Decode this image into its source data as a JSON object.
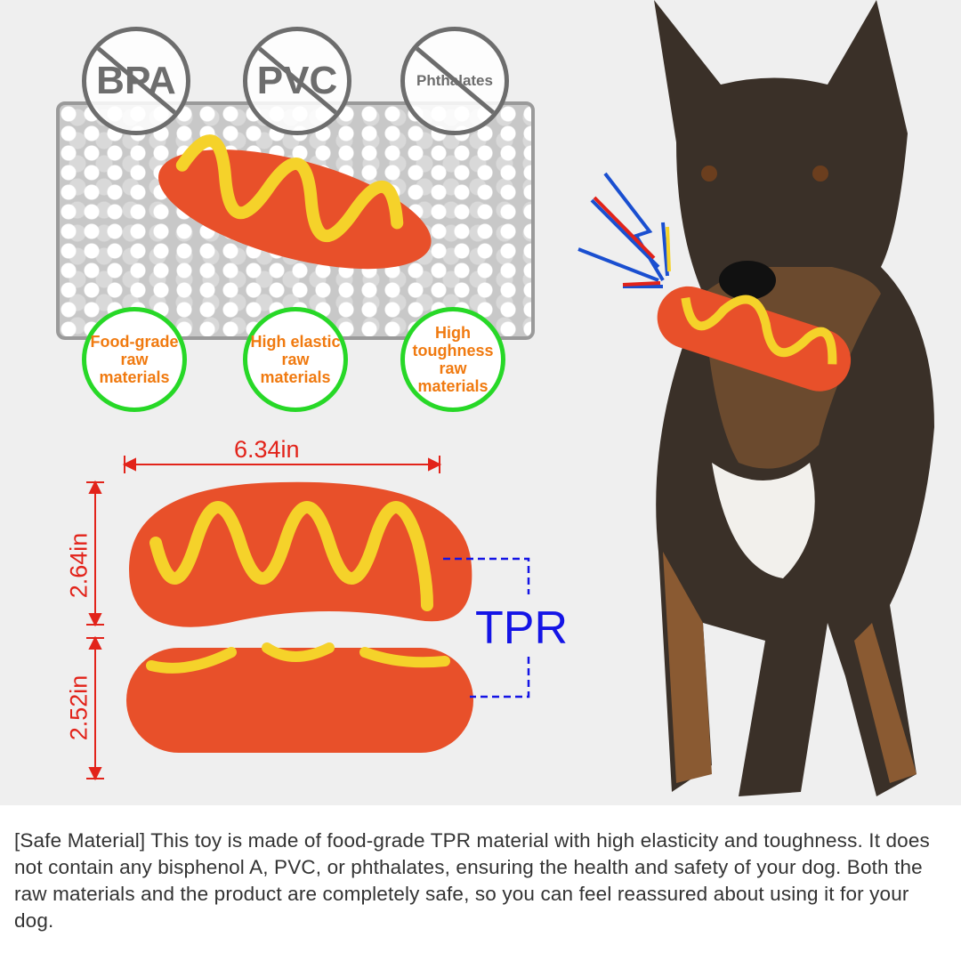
{
  "badges": {
    "free_of": [
      "BPA",
      "PVC",
      "Phthalates"
    ]
  },
  "features": [
    "Food-grade raw materials",
    "High elastic raw materials",
    "High toughness raw materials"
  ],
  "dimensions": {
    "length": "6.34in",
    "height_top": "2.64in",
    "height_bottom": "2.52in"
  },
  "material_label": "TPR",
  "description": "[Safe Material] This toy is made of food-grade TPR material with high elasticity and toughness. It does not contain any bisphenol A, PVC, or phthalates, ensuring the health and safety of your dog. Both the raw materials and the product are completely safe, so you can feel reassured about using it for your dog.",
  "colors": {
    "sausage": "#e8502a",
    "mustard": "#f5d22a",
    "dimension": "#e2231a",
    "tpr": "#1414e6",
    "feature_ring": "#27d827",
    "feature_text": "#f07a10"
  }
}
